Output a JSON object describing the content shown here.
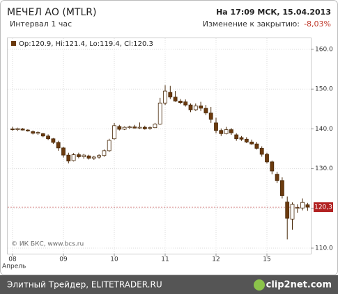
{
  "chart_data": {
    "type": "candlestick",
    "title": "МЕЧЕЛ АО (MTLR)",
    "subtitle": "Интервал 1 час",
    "timestamp": "На 17:09 МСК, 15.04.2013",
    "change_label": "Изменение к закрытию:",
    "change_value": "-8,03%",
    "legend": "Op:120.9, Hi:121.4, Lo:119.4, Cl:120.3",
    "last_label": "120,3",
    "copyright": "© ИК БКС, www.bcs.ru",
    "x_sublabel": "Апрель",
    "categories": [
      "08",
      null,
      null,
      null,
      null,
      null,
      null,
      null,
      null,
      null,
      "09",
      null,
      null,
      null,
      null,
      null,
      null,
      null,
      null,
      null,
      "10",
      null,
      null,
      null,
      null,
      null,
      null,
      null,
      null,
      null,
      "11",
      null,
      null,
      null,
      null,
      null,
      null,
      null,
      null,
      null,
      "12",
      null,
      null,
      null,
      null,
      null,
      null,
      null,
      null,
      null,
      "15",
      null,
      null,
      null,
      null,
      null,
      null,
      null,
      null
    ],
    "open": [
      140,
      139.8,
      140,
      139.7,
      139.3,
      138.9,
      138.8,
      138.2,
      137.5,
      136.6,
      135.2,
      133.4,
      132,
      133.5,
      133,
      133.2,
      132.6,
      132.9,
      133.3,
      134.5,
      137.5,
      140.6,
      139.9,
      140.3,
      140.5,
      140.2,
      140.4,
      140.2,
      140.3,
      141.2,
      146.5,
      149.2,
      148,
      147,
      146.8,
      146,
      144.8,
      145.8,
      145.2,
      144,
      141.5,
      139.6,
      138.8,
      139.8,
      138.5,
      137.8,
      137.4,
      136.7,
      136.2,
      135.1,
      133.6,
      131.7,
      128.6,
      127,
      121.6,
      117.3,
      120,
      120.1,
      120.9
    ],
    "high": [
      140.5,
      140.3,
      140.2,
      139.9,
      139.6,
      139.4,
      139,
      138.6,
      137.7,
      137,
      135.5,
      134,
      133.9,
      134,
      133.7,
      133.5,
      133.2,
      133.6,
      134.8,
      137.5,
      141.5,
      141,
      140.6,
      140.8,
      141,
      141.6,
      140.8,
      140.6,
      141.5,
      147.8,
      151,
      150.8,
      149.5,
      147.5,
      147.4,
      146.4,
      146.4,
      146.8,
      146,
      145.5,
      142.8,
      140.1,
      140.5,
      140.2,
      138.9,
      138.2,
      137.9,
      137.3,
      136.7,
      135.6,
      134,
      132,
      129.2,
      127.8,
      123,
      121.5,
      121,
      122.5,
      121.4
    ],
    "low": [
      139.5,
      139.5,
      139.6,
      139.3,
      138.6,
      138.5,
      137.9,
      137.2,
      136.2,
      134.5,
      132.8,
      131.3,
      131.8,
      132.6,
      132.5,
      132.3,
      132.2,
      132.5,
      133,
      134.2,
      137.3,
      139.6,
      139.7,
      140,
      140.1,
      140,
      139.8,
      139.8,
      140.2,
      141,
      146,
      147.5,
      146.8,
      146.2,
      145.6,
      144.2,
      144.5,
      144.5,
      143.5,
      141.5,
      138.9,
      138.2,
      138.6,
      138.5,
      137,
      137,
      136.4,
      136,
      134.8,
      133,
      131.3,
      128.6,
      126.4,
      122.5,
      112.2,
      114.6,
      118.9,
      119.5,
      119.4
    ],
    "close": [
      139.8,
      140.1,
      139.7,
      139.5,
      138.9,
      139.1,
      138.2,
      137.5,
      136.6,
      135.2,
      133.4,
      131.9,
      133.5,
      133,
      133.4,
      132.6,
      132.9,
      133.3,
      134.5,
      137.1,
      140.8,
      139.9,
      140.4,
      140.5,
      140.2,
      140.4,
      140,
      140.3,
      141.2,
      146.5,
      149.5,
      148,
      147,
      146.6,
      146,
      144.8,
      145.8,
      145.2,
      144,
      142.4,
      139.6,
      138.8,
      139.8,
      139,
      137.5,
      137.4,
      136.7,
      136.2,
      135.1,
      133.6,
      131.7,
      129.4,
      127,
      123.2,
      117.5,
      121,
      120.2,
      121.5,
      120.3
    ],
    "up_color": "#ffffff",
    "down_color": "#6b3a0e",
    "outline_color": "#4a2a0a",
    "last_color": "#b22222",
    "ylim": [
      108.6,
      162.8
    ],
    "yticks": [
      {
        "value": 110,
        "label": "110.0"
      },
      {
        "value": 120,
        "label": "120.0"
      },
      {
        "value": 130,
        "label": "130.0"
      },
      {
        "value": 140,
        "label": "140.0"
      },
      {
        "value": 150,
        "label": "150.0"
      },
      {
        "value": 160,
        "label": "160.0"
      }
    ],
    "grid": true
  },
  "footer": {
    "left": "Элитный Трейдер, ELITETRADER.RU",
    "right": "clip2net.com"
  }
}
